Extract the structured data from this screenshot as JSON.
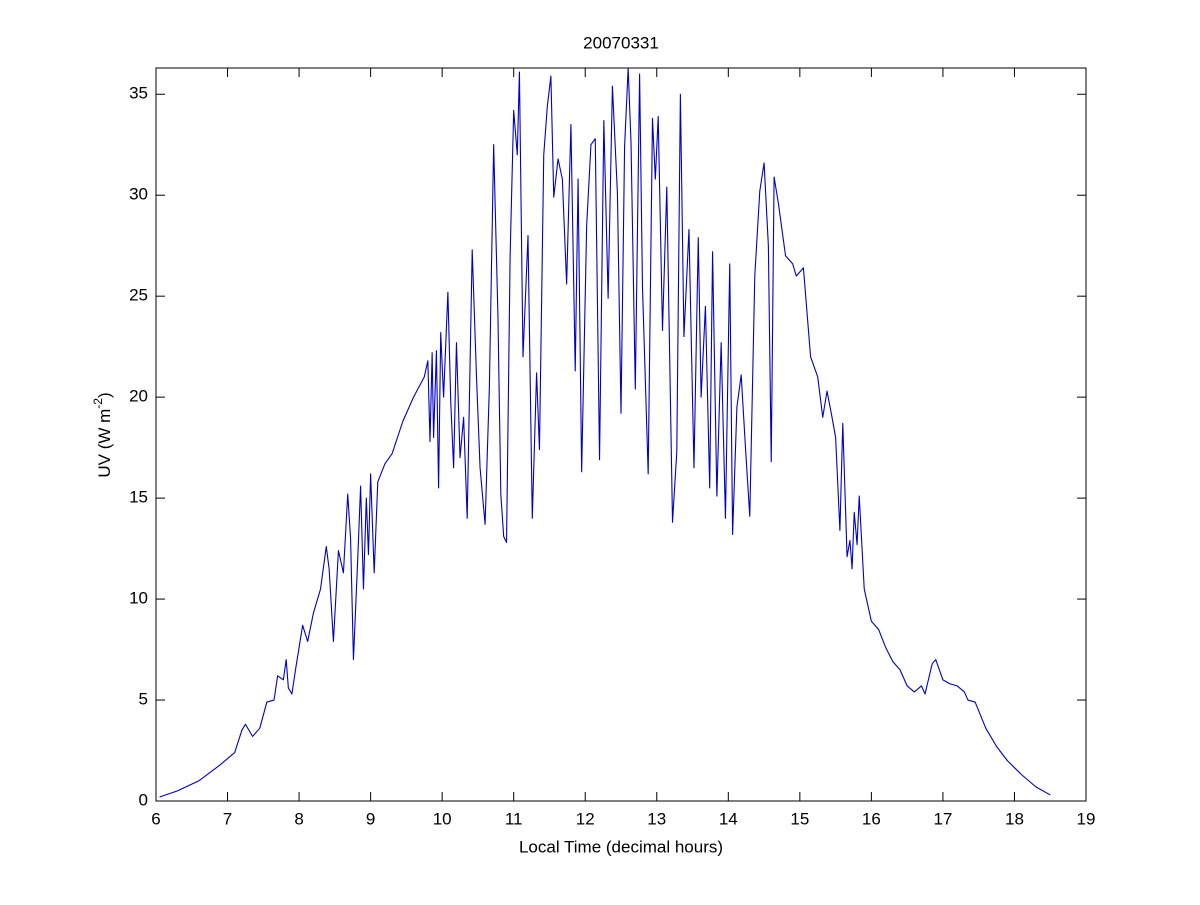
{
  "chart_data": {
    "type": "line",
    "title": "20070331",
    "xlabel": "Local Time (decimal hours)",
    "ylabel": {
      "text": "UV (W m",
      "superscript": "-2",
      "suffix": ")"
    },
    "x": [
      6.05,
      6.3,
      6.6,
      6.9,
      7.1,
      7.2,
      7.25,
      7.35,
      7.45,
      7.55,
      7.65,
      7.7,
      7.78,
      7.82,
      7.85,
      7.9,
      7.95,
      8.05,
      8.12,
      8.2,
      8.3,
      8.38,
      8.42,
      8.48,
      8.55,
      8.62,
      8.68,
      8.72,
      8.76,
      8.82,
      8.86,
      8.9,
      8.94,
      8.97,
      9.0,
      9.05,
      9.1,
      9.2,
      9.3,
      9.45,
      9.6,
      9.75,
      9.8,
      9.83,
      9.86,
      9.88,
      9.92,
      9.95,
      9.98,
      10.02,
      10.08,
      10.12,
      10.16,
      10.2,
      10.25,
      10.3,
      10.35,
      10.42,
      10.48,
      10.53,
      10.6,
      10.66,
      10.72,
      10.78,
      10.82,
      10.86,
      10.9,
      10.95,
      11.0,
      11.05,
      11.08,
      11.13,
      11.2,
      11.26,
      11.32,
      11.36,
      11.42,
      11.47,
      11.52,
      11.56,
      11.62,
      11.68,
      11.74,
      11.8,
      11.86,
      11.9,
      11.95,
      12.02,
      12.08,
      12.14,
      12.2,
      12.26,
      12.32,
      12.38,
      12.45,
      12.5,
      12.55,
      12.6,
      12.64,
      12.7,
      12.76,
      12.8,
      12.88,
      12.94,
      12.98,
      13.02,
      13.08,
      13.14,
      13.22,
      13.28,
      13.33,
      13.38,
      13.45,
      13.52,
      13.58,
      13.62,
      13.68,
      13.74,
      13.78,
      13.84,
      13.9,
      13.96,
      14.02,
      14.06,
      14.12,
      14.18,
      14.24,
      14.3,
      14.37,
      14.44,
      14.5,
      14.56,
      14.6,
      14.64,
      14.7,
      14.8,
      14.9,
      14.95,
      15.05,
      15.15,
      15.25,
      15.32,
      15.38,
      15.45,
      15.5,
      15.56,
      15.6,
      15.66,
      15.7,
      15.73,
      15.76,
      15.8,
      15.83,
      15.9,
      16.0,
      16.1,
      16.2,
      16.3,
      16.4,
      16.5,
      16.6,
      16.7,
      16.75,
      16.85,
      16.9,
      17.0,
      17.1,
      17.2,
      17.3,
      17.35,
      17.45,
      17.6,
      17.75,
      17.9,
      18.1,
      18.3,
      18.5
    ],
    "series": [
      {
        "color": "#0000c8",
        "values": [
          0.2,
          0.5,
          1.0,
          1.8,
          2.4,
          3.5,
          3.8,
          3.2,
          3.6,
          4.9,
          5.0,
          6.2,
          6.0,
          7.0,
          5.6,
          5.3,
          6.5,
          8.7,
          7.9,
          9.3,
          10.5,
          12.6,
          11.5,
          7.9,
          12.4,
          11.3,
          15.2,
          13.0,
          7.0,
          12.0,
          15.6,
          10.5,
          15.0,
          12.2,
          16.2,
          11.3,
          15.8,
          16.7,
          17.2,
          18.8,
          20.0,
          21.0,
          21.8,
          17.8,
          22.2,
          18.0,
          22.3,
          15.5,
          23.2,
          20.0,
          25.2,
          19.8,
          16.5,
          22.7,
          17.0,
          19.0,
          14.0,
          27.3,
          21.0,
          16.5,
          13.7,
          20.5,
          32.5,
          24.0,
          15.2,
          13.1,
          12.8,
          27.0,
          34.2,
          32.0,
          36.1,
          22.0,
          28.0,
          14.0,
          21.2,
          17.4,
          32.0,
          34.4,
          35.9,
          29.9,
          31.8,
          30.8,
          25.6,
          33.5,
          21.3,
          30.8,
          16.3,
          28.5,
          32.5,
          32.8,
          16.9,
          33.7,
          24.9,
          35.4,
          30.1,
          19.2,
          32.4,
          36.3,
          32.6,
          20.4,
          36.0,
          25.5,
          16.2,
          33.8,
          30.8,
          33.9,
          23.3,
          30.4,
          13.8,
          17.3,
          35.0,
          23.0,
          28.3,
          16.5,
          27.9,
          20.0,
          24.5,
          15.5,
          27.2,
          15.1,
          22.7,
          14.0,
          26.6,
          13.2,
          19.5,
          21.1,
          17.5,
          14.1,
          26.0,
          30.2,
          31.6,
          27.5,
          16.8,
          30.9,
          29.6,
          27.0,
          26.6,
          26.0,
          26.4,
          22.0,
          21.0,
          19.0,
          20.3,
          19.0,
          18.0,
          13.4,
          18.7,
          12.1,
          12.9,
          11.5,
          14.3,
          12.7,
          15.1,
          10.5,
          8.9,
          8.5,
          7.6,
          6.9,
          6.5,
          5.7,
          5.4,
          5.7,
          5.3,
          6.8,
          7.0,
          6.0,
          5.8,
          5.7,
          5.4,
          5.0,
          4.9,
          3.6,
          2.7,
          2.0,
          1.3,
          0.7,
          0.3
        ]
      }
    ],
    "xlim": [
      6,
      19
    ],
    "xticks": [
      6,
      7,
      8,
      9,
      10,
      11,
      12,
      13,
      14,
      15,
      16,
      17,
      18,
      19
    ],
    "ylim": [
      0,
      36.3
    ],
    "yticks": [
      0,
      5,
      10,
      15,
      20,
      25,
      30,
      35
    ],
    "grid": false
  }
}
